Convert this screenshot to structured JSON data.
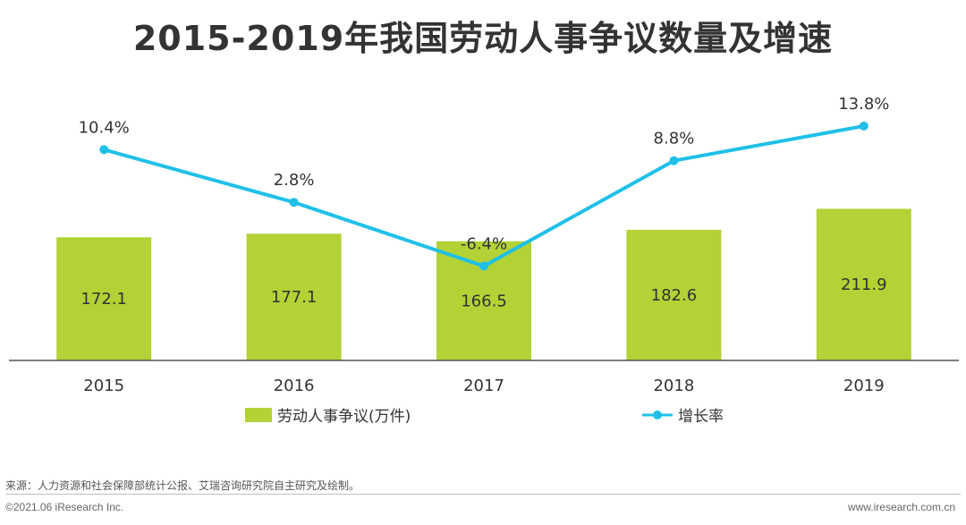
{
  "chart_data": {
    "type": "bar",
    "title": "2015-2019年我国劳动人事争议数量及增速",
    "categories": [
      "2015",
      "2016",
      "2017",
      "2018",
      "2019"
    ],
    "series": [
      {
        "name": "劳动人事争议(万件)",
        "kind": "bar",
        "values": [
          172.1,
          177.1,
          166.5,
          182.6,
          211.9
        ],
        "labels": [
          "172.1",
          "177.1",
          "166.5",
          "182.6",
          "211.9"
        ],
        "color": "#b2d235"
      },
      {
        "name": "增长率",
        "kind": "line",
        "values": [
          10.4,
          2.8,
          -6.4,
          8.8,
          13.8
        ],
        "labels": [
          "10.4%",
          "2.8%",
          "-6.4%",
          "8.8%",
          "13.8%"
        ],
        "color": "#1fc0e8"
      }
    ],
    "ylim_bar": [
      0,
      224
    ],
    "ylim_line": [
      -20,
      16.5
    ],
    "grid": false,
    "legend": "bottom-center"
  },
  "footer": {
    "source": "来源：人力资源和社会保障部统计公报、艾瑞咨询研究院自主研究及绘制。",
    "copyright": "©2021.06 iResearch Inc.",
    "website": "www.iresearch.com.cn"
  }
}
